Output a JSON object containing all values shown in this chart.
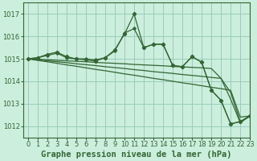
{
  "title": "Graphe pression niveau de la mer (hPa)",
  "bg_color": "#cceedd",
  "grid_color": "#99ccbb",
  "line_color": "#336633",
  "xlim": [
    -0.5,
    23
  ],
  "ylim": [
    1011.5,
    1017.5
  ],
  "yticks": [
    1012,
    1013,
    1014,
    1015,
    1016,
    1017
  ],
  "xticks": [
    0,
    1,
    2,
    3,
    4,
    5,
    6,
    7,
    8,
    9,
    10,
    11,
    12,
    13,
    14,
    15,
    16,
    17,
    18,
    19,
    20,
    21,
    22,
    23
  ],
  "series_jagged1": [
    1015.0,
    1015.05,
    1015.2,
    1015.3,
    1015.1,
    1015.0,
    1014.95,
    1014.9,
    1015.05,
    1015.4,
    1016.1,
    1017.0,
    1015.5,
    1015.65,
    1015.65,
    1014.7,
    1014.65,
    1015.1,
    1014.85,
    1013.6,
    1013.15,
    1012.1,
    1012.2,
    1012.45
  ],
  "series_diag1": [
    1015.0,
    1014.93,
    1014.87,
    1014.8,
    1014.73,
    1014.67,
    1014.6,
    1014.53,
    1014.47,
    1014.4,
    1014.33,
    1014.27,
    1014.2,
    1014.13,
    1014.07,
    1014.0,
    1013.93,
    1013.87,
    1013.8,
    1013.73,
    1013.67,
    1013.6,
    1012.4,
    1012.45
  ],
  "series_diag2": [
    1015.0,
    1014.96,
    1014.91,
    1014.87,
    1014.83,
    1014.78,
    1014.74,
    1014.7,
    1014.65,
    1014.61,
    1014.57,
    1014.52,
    1014.48,
    1014.43,
    1014.39,
    1014.35,
    1014.3,
    1014.26,
    1014.22,
    1014.17,
    1014.13,
    1013.5,
    1012.2,
    1012.45
  ],
  "series_diag3": [
    1015.0,
    1014.98,
    1014.96,
    1014.93,
    1014.91,
    1014.89,
    1014.87,
    1014.84,
    1014.82,
    1014.8,
    1014.78,
    1014.75,
    1014.73,
    1014.71,
    1014.69,
    1014.66,
    1014.64,
    1014.62,
    1014.6,
    1014.57,
    1014.13,
    1013.2,
    1012.15,
    1012.45
  ],
  "series_jagged2": [
    1015.0,
    1015.05,
    1015.15,
    1015.25,
    1015.05,
    1015.0,
    1015.0,
    1014.95,
    1015.05,
    1015.35,
    1016.15,
    1016.35,
    1015.5,
    1015.65,
    1015.65,
    1014.7,
    1014.65,
    1015.1,
    1014.85,
    1013.6,
    1013.15,
    1012.1,
    1012.2,
    1012.45
  ],
  "title_fontsize": 7.5,
  "tick_fontsize": 6
}
